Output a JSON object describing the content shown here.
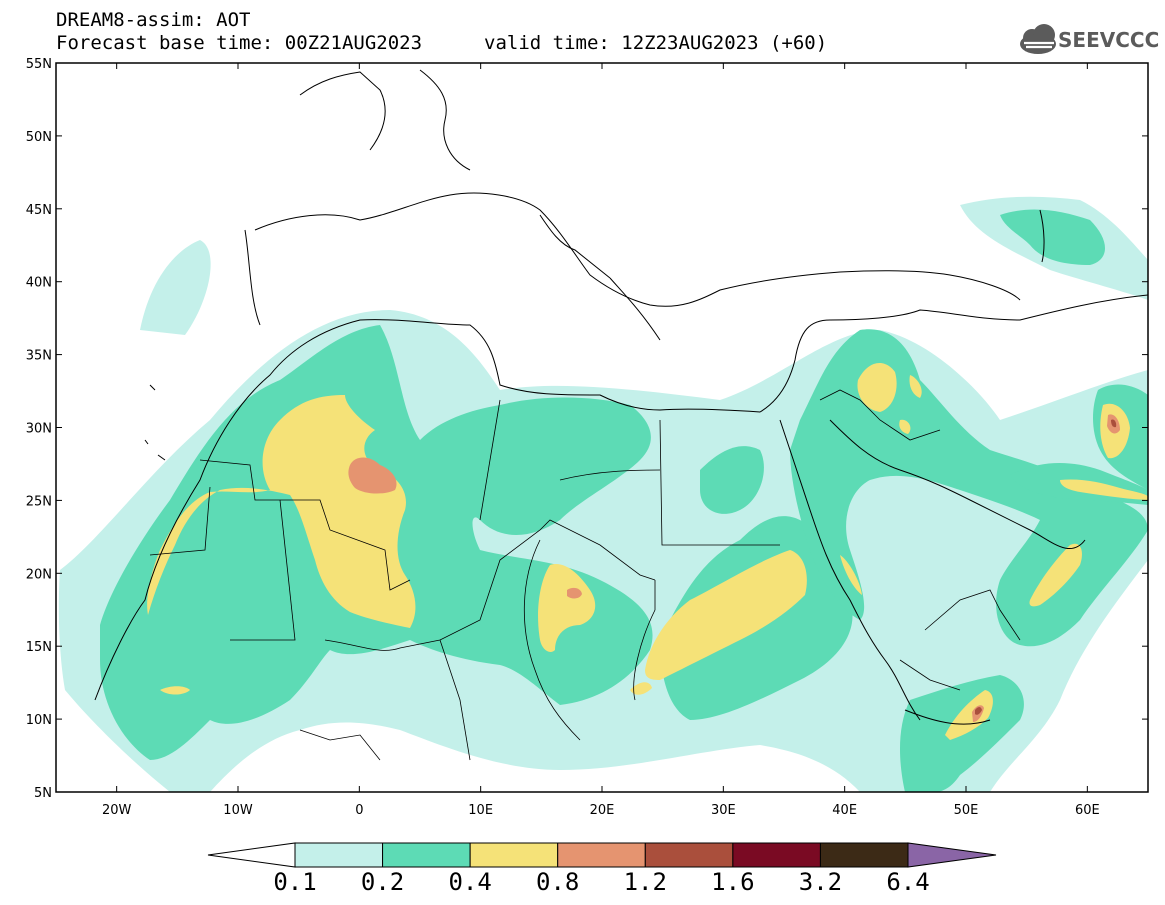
{
  "header": {
    "line1": "DREAM8-assim: AOT",
    "line2": "Forecast base time: 00Z21AUG2023",
    "valid": "valid time: 12Z23AUG2023 (+60)"
  },
  "logo": {
    "text": "SEEVCCC",
    "icon": "cloud-logo-icon"
  },
  "map": {
    "lon_range": [
      -25,
      65
    ],
    "lat_range": [
      5,
      55
    ],
    "lat_ticks": [
      "55N",
      "50N",
      "45N",
      "40N",
      "35N",
      "30N",
      "25N",
      "20N",
      "15N",
      "10N",
      "5N"
    ],
    "lon_ticks": [
      "20W",
      "10W",
      "0",
      "10E",
      "20E",
      "30E",
      "40E",
      "50E",
      "60E"
    ],
    "coastlines": "black"
  },
  "colorbar": {
    "labels": [
      "0.1",
      "0.2",
      "0.4",
      "0.8",
      "1.2",
      "1.6",
      "3.2",
      "6.4"
    ],
    "colors": [
      "#c4f0ea",
      "#5ddbb5",
      "#f5e278",
      "#e59470",
      "#aa4f3c",
      "#7a0a23",
      "#3c2a16"
    ],
    "over_color": "#8a65a6",
    "under_color": "#ffffff"
  }
}
